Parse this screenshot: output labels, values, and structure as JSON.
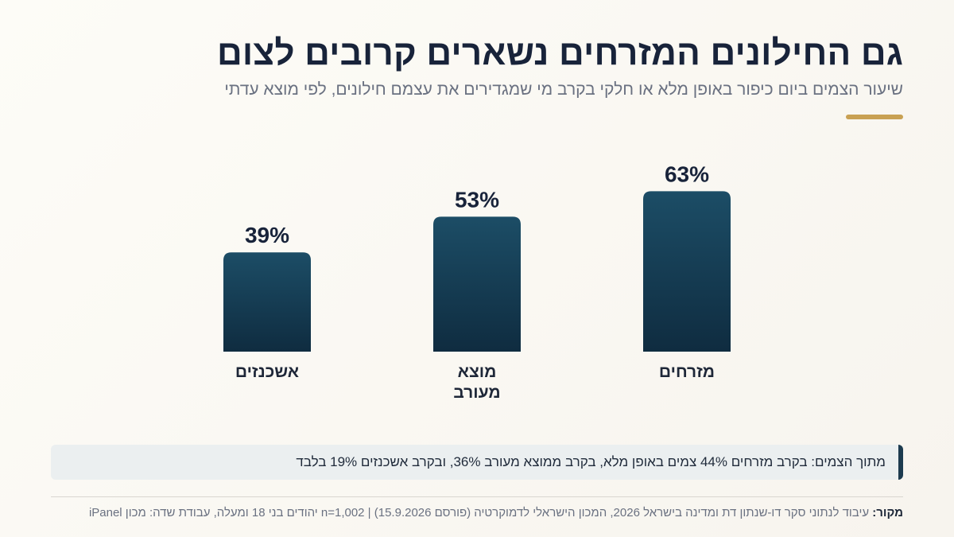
{
  "header": {
    "title": "גם החילונים המזרחים נשארים קרובים לצום",
    "subtitle": "שיעור הצמים ביום כיפור באופן מלא או חלקי בקרב מי שמגדירים את עצמם חילונים, לפי מוצא עדתי"
  },
  "colors": {
    "bar_top": "#1c4d66",
    "bar_bottom": "#0f2c40",
    "accent": "#c9a153",
    "text_dark": "#18233a"
  },
  "chart_data": {
    "type": "bar",
    "categories": [
      "מזרחים",
      "מוצא מעורב",
      "אשכנזים"
    ],
    "category_lines": [
      [
        "מזרחים"
      ],
      [
        "מוצא",
        "מעורב"
      ],
      [
        "אשכנזים"
      ]
    ],
    "values": [
      63,
      53,
      39
    ],
    "value_labels": [
      "63%",
      "53%",
      "39%"
    ],
    "unit": "%",
    "ylim": [
      0,
      100
    ],
    "grid": false,
    "legend": "none",
    "direction": "right-to-left"
  },
  "note": {
    "text": "מתוך הצמים: בקרב מזרחים 44% צמים באופן מלא, בקרב ממוצא מעורב 36%, ובקרב אשכנזים 19% בלבד"
  },
  "source": {
    "label": "מקור:",
    "text": "עיבוד לנתוני סקר דו-שנתון דת ומדינה בישראל 2026, המכון הישראלי לדמוקרטיה (פורסם 15.9.2026) | n=1,002 יהודים בני 18 ומעלה, עבודת שדה: מכון iPanel"
  }
}
